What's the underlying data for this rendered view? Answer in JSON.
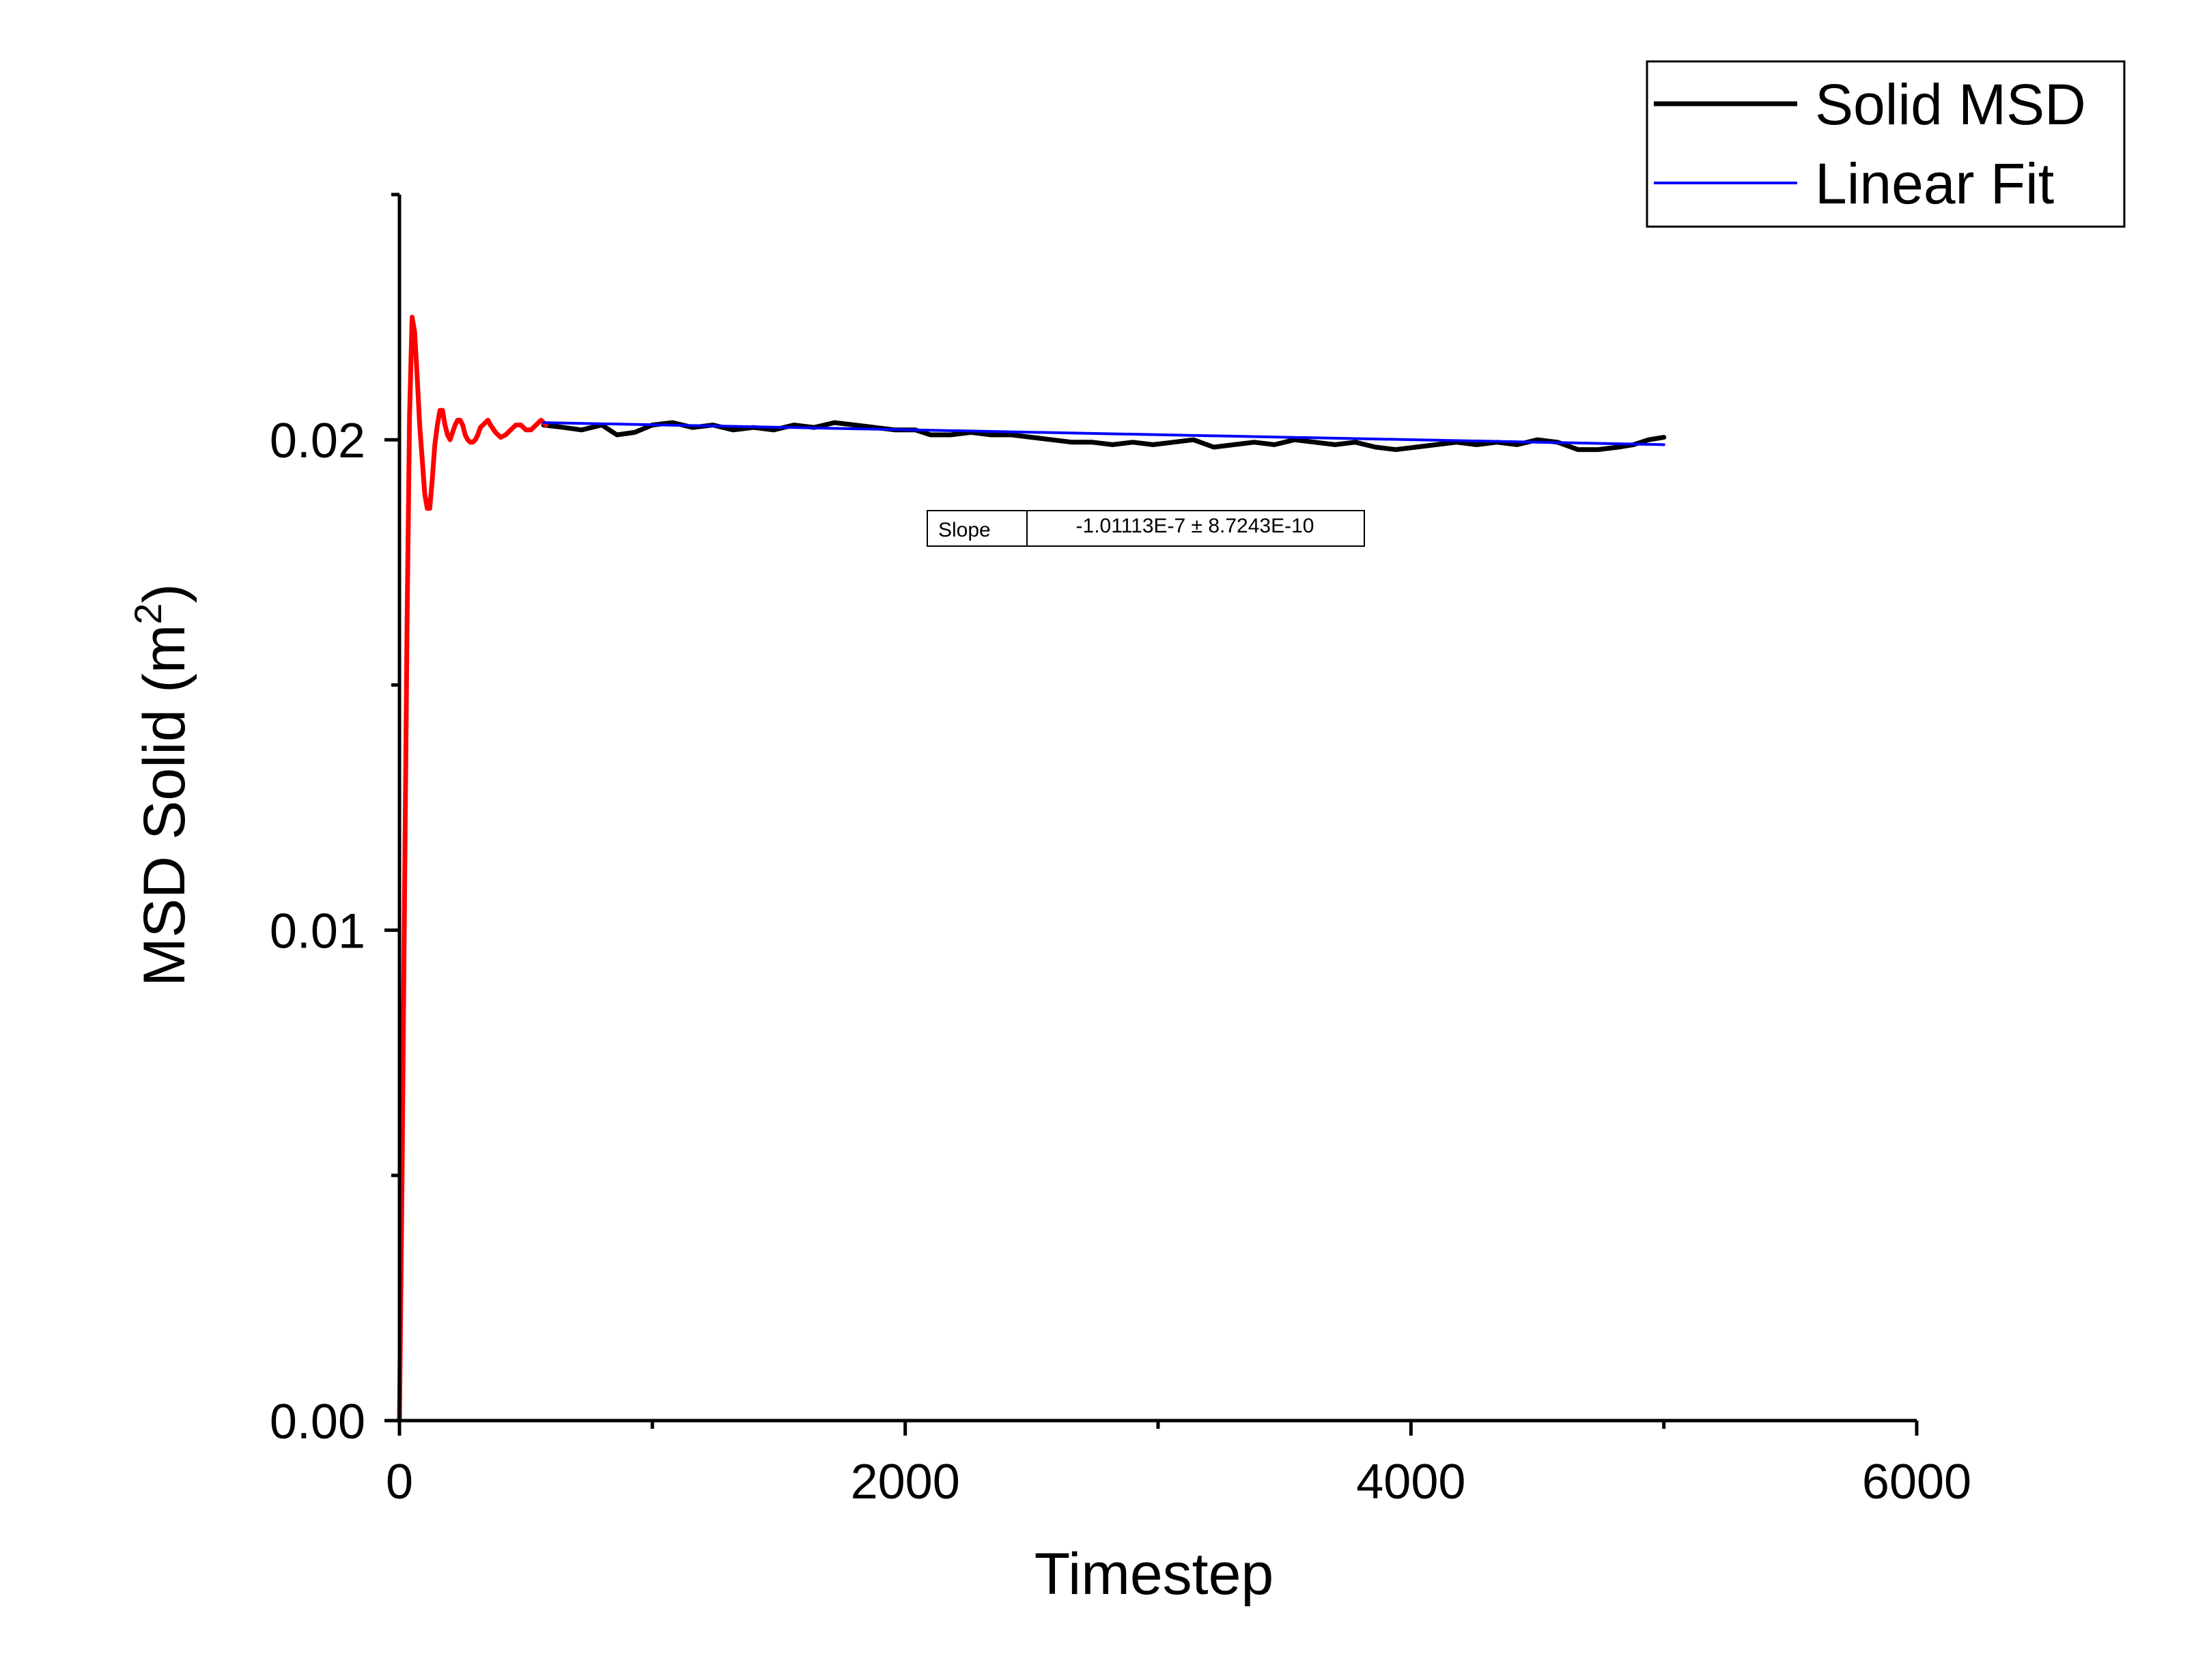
{
  "chart_data": {
    "type": "line",
    "xlabel": "Timestep",
    "ylabel_main": "MSD Solid (m",
    "ylabel_sup": "2",
    "ylabel_close": ")",
    "xlim": [
      0,
      6000
    ],
    "ylim": [
      0,
      0.025
    ],
    "x_ticks": [
      {
        "value": 0,
        "label": "0"
      },
      {
        "value": 2000,
        "label": "2000"
      },
      {
        "value": 4000,
        "label": "4000"
      },
      {
        "value": 6000,
        "label": "6000"
      }
    ],
    "x_minor_ticks": [
      1000,
      3000,
      5000
    ],
    "y_ticks": [
      {
        "value": 0,
        "label": "0.00"
      },
      {
        "value": 0.01,
        "label": "0.01"
      },
      {
        "value": 0.02,
        "label": "0.02"
      }
    ],
    "y_minor_ticks": [
      0.005,
      0.015,
      0.025
    ],
    "grid": false,
    "legend_position": "top-right",
    "legend": [
      {
        "label": "Solid MSD",
        "color": "#000000"
      },
      {
        "label": "Linear Fit",
        "color": "#0000ff"
      }
    ],
    "series": [
      {
        "name": "Solid MSD",
        "color": "#000000",
        "x": [
          570,
          650,
          720,
          800,
          860,
          930,
          1000,
          1080,
          1160,
          1240,
          1320,
          1400,
          1480,
          1560,
          1640,
          1720,
          1800,
          1880,
          1960,
          2040,
          2100,
          2180,
          2260,
          2340,
          2420,
          2500,
          2580,
          2660,
          2740,
          2820,
          2900,
          2980,
          3060,
          3140,
          3220,
          3300,
          3380,
          3460,
          3540,
          3620,
          3700,
          3780,
          3860,
          3940,
          4020,
          4100,
          4180,
          4260,
          4340,
          4420,
          4500,
          4580,
          4660,
          4740,
          4820,
          4880,
          4940,
          5000
        ],
        "y": [
          0.0203,
          0.02025,
          0.0202,
          0.0203,
          0.0201,
          0.02015,
          0.0203,
          0.02035,
          0.02025,
          0.0203,
          0.0202,
          0.02025,
          0.0202,
          0.0203,
          0.02025,
          0.02035,
          0.0203,
          0.02025,
          0.0202,
          0.0202,
          0.0201,
          0.0201,
          0.02015,
          0.0201,
          0.0201,
          0.02005,
          0.02,
          0.01995,
          0.01995,
          0.0199,
          0.01995,
          0.0199,
          0.01995,
          0.02,
          0.01985,
          0.0199,
          0.01995,
          0.0199,
          0.02,
          0.01995,
          0.0199,
          0.01995,
          0.01985,
          0.0198,
          0.01985,
          0.0199,
          0.01995,
          0.0199,
          0.01995,
          0.0199,
          0.02,
          0.01995,
          0.0198,
          0.0198,
          0.01985,
          0.0199,
          0.02,
          0.02005
        ]
      },
      {
        "name": "",
        "color": "#ff0000",
        "x": [
          0,
          10,
          20,
          30,
          40,
          50,
          60,
          70,
          80,
          90,
          100,
          110,
          120,
          130,
          140,
          150,
          160,
          170,
          180,
          190,
          200,
          210,
          220,
          230,
          240,
          250,
          260,
          270,
          280,
          290,
          300,
          310,
          320,
          330,
          340,
          350,
          360,
          380,
          400,
          420,
          440,
          460,
          480,
          500,
          520,
          540,
          560,
          580
        ],
        "y": [
          0.0,
          0.0048,
          0.0106,
          0.0162,
          0.0205,
          0.0225,
          0.0222,
          0.0213,
          0.0203,
          0.0196,
          0.0189,
          0.0186,
          0.0186,
          0.0192,
          0.0199,
          0.0203,
          0.0206,
          0.0206,
          0.0203,
          0.0201,
          0.02,
          0.02015,
          0.0203,
          0.0204,
          0.0204,
          0.0203,
          0.0201,
          0.02,
          0.01995,
          0.01995,
          0.02,
          0.0201,
          0.02025,
          0.0203,
          0.02035,
          0.0204,
          0.0203,
          0.02015,
          0.02005,
          0.0201,
          0.0202,
          0.0203,
          0.0203,
          0.0202,
          0.0202,
          0.0203,
          0.0204,
          0.0203
        ]
      },
      {
        "name": "Linear Fit",
        "color": "#0000ff",
        "x": [
          570,
          5000
        ],
        "y": [
          0.02035,
          0.0199
        ]
      }
    ],
    "annotation": {
      "label": "Slope",
      "value": "-1.01113E-7 ± 8.7243E-10"
    }
  }
}
